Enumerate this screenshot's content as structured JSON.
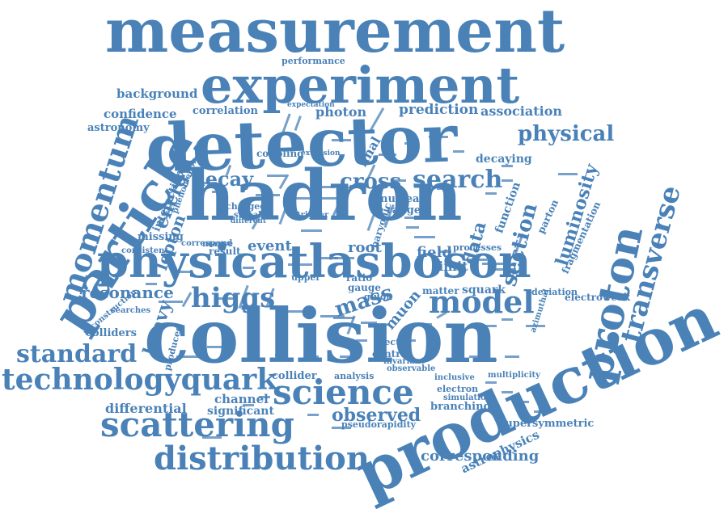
{
  "color": "#4a82b8",
  "words": [
    {
      "text": "measurement"
    },
    {
      "text": "experiment"
    },
    {
      "text": "performance"
    },
    {
      "text": "background"
    },
    {
      "text": "confidence"
    },
    {
      "text": "correlation"
    },
    {
      "text": "expectation"
    },
    {
      "text": "photon"
    },
    {
      "text": "prediction"
    },
    {
      "text": "association"
    },
    {
      "text": "astronomy"
    },
    {
      "text": "detector"
    },
    {
      "text": "physical"
    },
    {
      "text": "particle"
    },
    {
      "text": "momentum"
    },
    {
      "text": "coupling"
    },
    {
      "text": "extension"
    },
    {
      "text": "final"
    },
    {
      "text": "decaying"
    },
    {
      "text": "energy"
    },
    {
      "text": "interaction"
    },
    {
      "text": "decay"
    },
    {
      "text": "cross"
    },
    {
      "text": "search"
    },
    {
      "text": "luminosity"
    },
    {
      "text": "transverse"
    },
    {
      "text": "hadron"
    },
    {
      "text": "lepton"
    },
    {
      "text": "charged"
    },
    {
      "text": "signal"
    },
    {
      "text": "nuclear"
    },
    {
      "text": "range"
    },
    {
      "text": "function"
    },
    {
      "text": "data"
    },
    {
      "text": "section"
    },
    {
      "text": "parton"
    },
    {
      "text": "missing"
    },
    {
      "text": "result"
    },
    {
      "text": "event"
    },
    {
      "text": "root"
    },
    {
      "text": "field"
    },
    {
      "text": "limit"
    },
    {
      "text": "consistent"
    },
    {
      "text": "masse"
    },
    {
      "text": "physicatlasboson"
    },
    {
      "text": "proton"
    },
    {
      "text": "upper"
    },
    {
      "text": "resonance"
    },
    {
      "text": "higgs"
    },
    {
      "text": "model"
    },
    {
      "text": "heavy"
    },
    {
      "text": "mass"
    },
    {
      "text": "muon"
    },
    {
      "text": "gluon"
    },
    {
      "text": "matter"
    },
    {
      "text": "squark"
    },
    {
      "text": "deviation"
    },
    {
      "text": "electroweak"
    },
    {
      "text": "reconstruction"
    },
    {
      "text": "searches"
    },
    {
      "text": "colliders"
    },
    {
      "text": "produced"
    },
    {
      "text": "collision"
    },
    {
      "text": "standard"
    },
    {
      "text": "technologyquark"
    },
    {
      "text": "collider"
    },
    {
      "text": "analysis"
    },
    {
      "text": "inclusive"
    },
    {
      "text": "multiplicity"
    },
    {
      "text": "science"
    },
    {
      "text": "production"
    },
    {
      "text": "electron"
    },
    {
      "text": "channel"
    },
    {
      "text": "differential"
    },
    {
      "text": "significant"
    },
    {
      "text": "observed"
    },
    {
      "text": "branching"
    },
    {
      "text": "scattering"
    },
    {
      "text": "pseudorapidity"
    },
    {
      "text": "supersymmetric"
    },
    {
      "text": "astrophysics"
    },
    {
      "text": "distribution"
    },
    {
      "text": "corresponding"
    },
    {
      "text": "simulation"
    },
    {
      "text": "centre"
    },
    {
      "text": "vector"
    },
    {
      "text": "invariant"
    },
    {
      "text": "observable"
    },
    {
      "text": "processes"
    },
    {
      "text": "fragmentation"
    },
    {
      "text": "azimuthal"
    },
    {
      "text": "phenomenon"
    },
    {
      "text": "correspond"
    },
    {
      "text": "gauge"
    },
    {
      "text": "ratio"
    },
    {
      "text": "baryonic"
    },
    {
      "text": "different"
    },
    {
      "text": "trigger"
    }
  ]
}
